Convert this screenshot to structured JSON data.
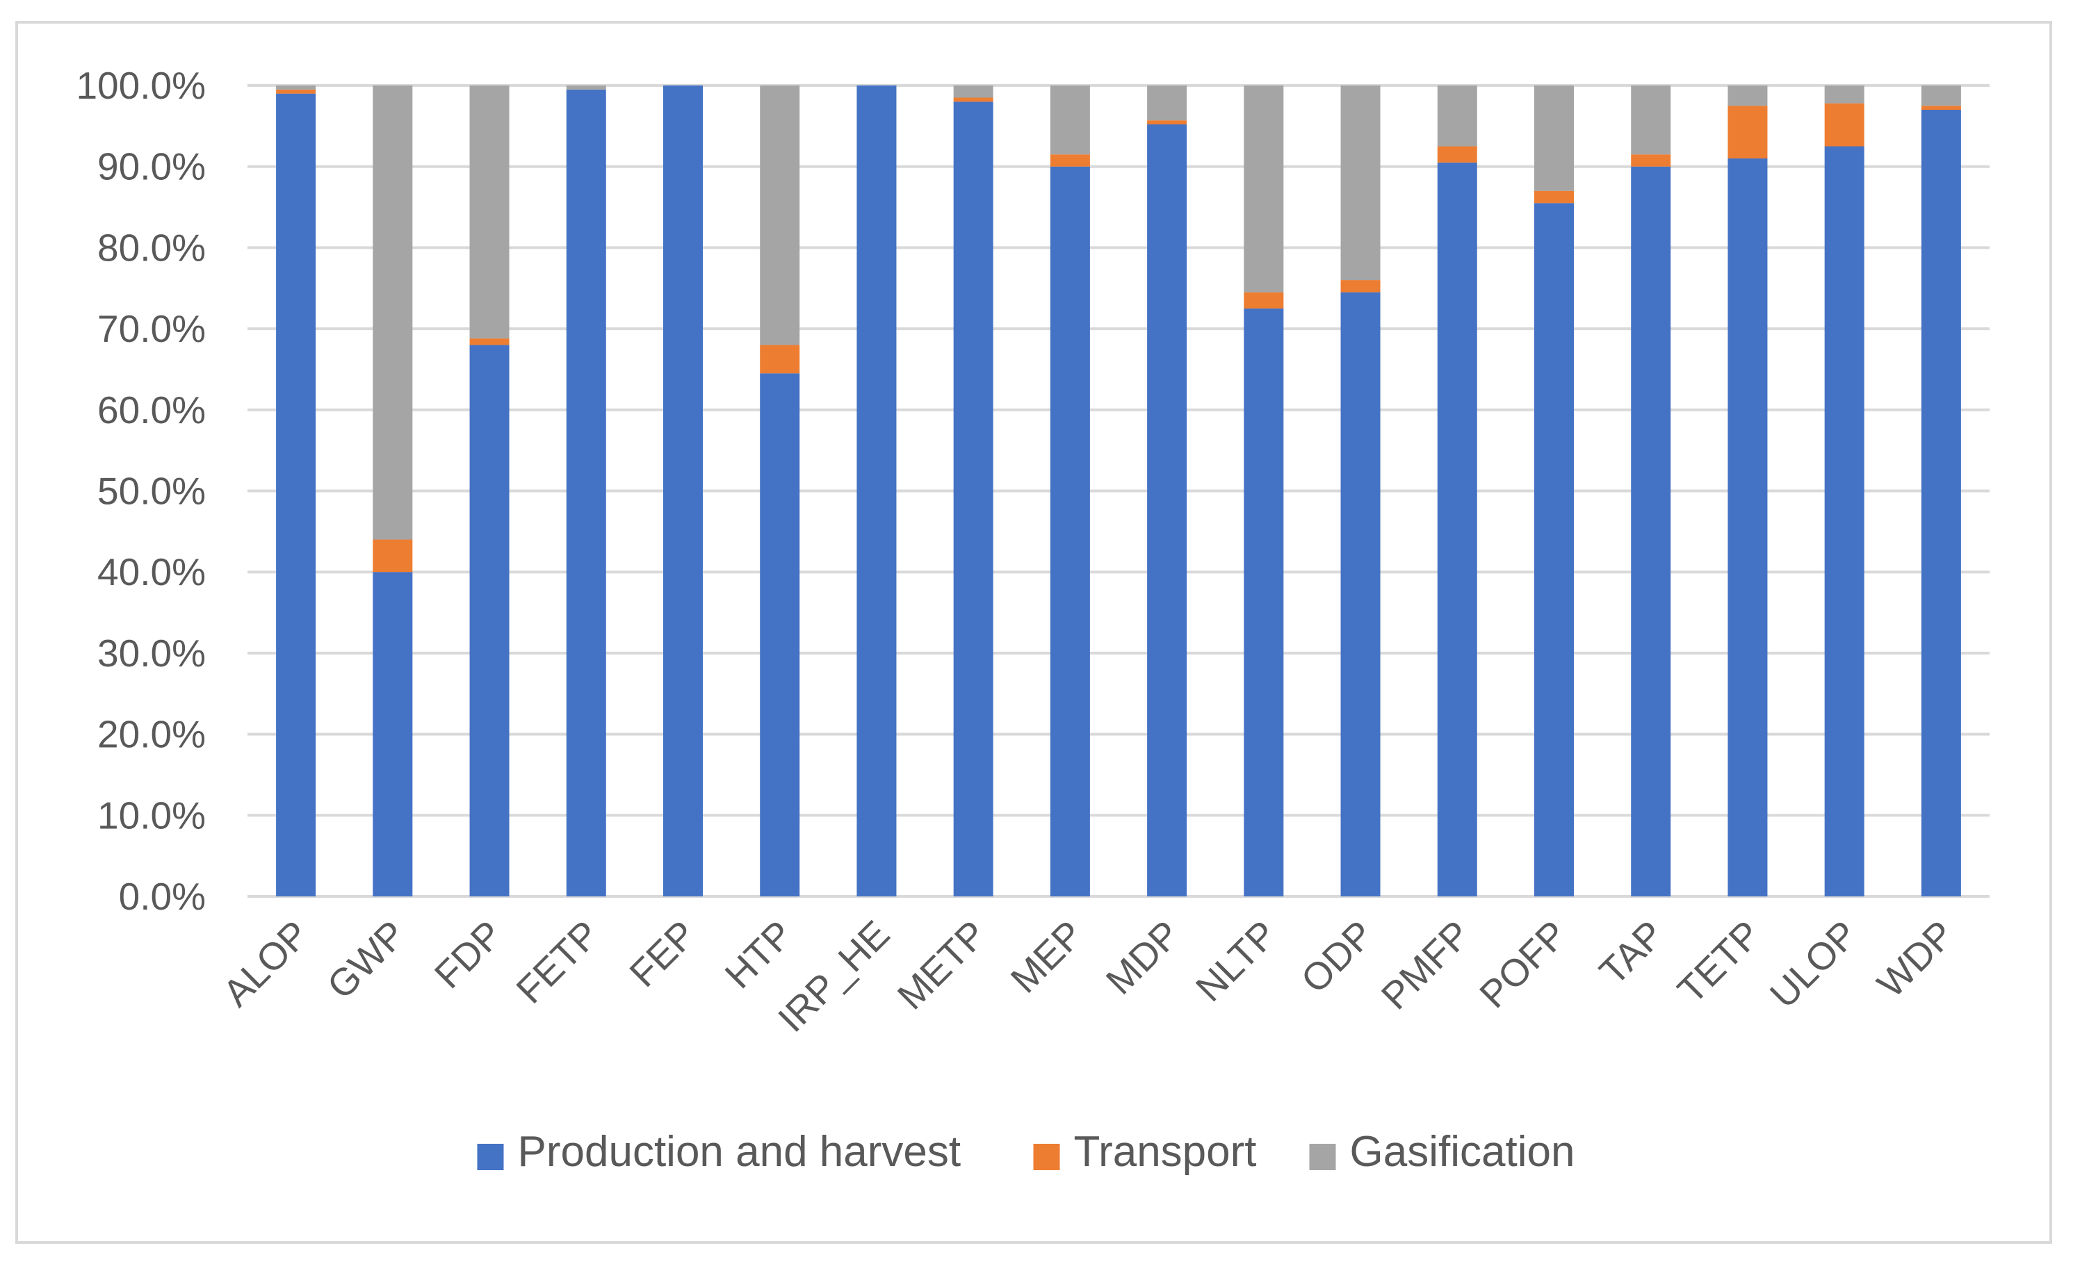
{
  "chart_data": {
    "type": "bar",
    "stacked": true,
    "title": "",
    "xlabel": "",
    "ylabel": "",
    "ylim": [
      0,
      100
    ],
    "yticks": [
      "0.0%",
      "10.0%",
      "20.0%",
      "30.0%",
      "40.0%",
      "50.0%",
      "60.0%",
      "70.0%",
      "80.0%",
      "90.0%",
      "100.0%"
    ],
    "grid": true,
    "legend_position": "bottom",
    "categories": [
      "ALOP",
      "GWP",
      "FDP",
      "FETP",
      "FEP",
      "HTP",
      "IRP_HE",
      "METP",
      "MEP",
      "MDP",
      "NLTP",
      "ODP",
      "PMFP",
      "POFP",
      "TAP",
      "TETP",
      "ULOP",
      "WDP"
    ],
    "series": [
      {
        "name": "Production and harvest",
        "color": "#4472c4",
        "values": [
          99.0,
          40.0,
          68.0,
          99.5,
          100.0,
          64.5,
          100.0,
          98.0,
          90.0,
          95.2,
          72.5,
          74.5,
          90.5,
          85.5,
          90.0,
          91.0,
          92.5,
          97.0
        ]
      },
      {
        "name": "Transport",
        "color": "#ed7d31",
        "values": [
          0.5,
          4.0,
          0.8,
          0.0,
          0.0,
          3.5,
          0.0,
          0.5,
          1.5,
          0.5,
          2.0,
          1.5,
          2.0,
          1.5,
          1.5,
          6.5,
          5.3,
          0.5
        ]
      },
      {
        "name": "Gasification",
        "color": "#a5a5a5",
        "values": [
          0.5,
          56.0,
          31.2,
          0.5,
          0.0,
          32.0,
          0.0,
          1.5,
          8.5,
          4.3,
          25.5,
          24.0,
          7.5,
          13.0,
          8.5,
          2.5,
          2.2,
          2.5
        ]
      }
    ]
  }
}
